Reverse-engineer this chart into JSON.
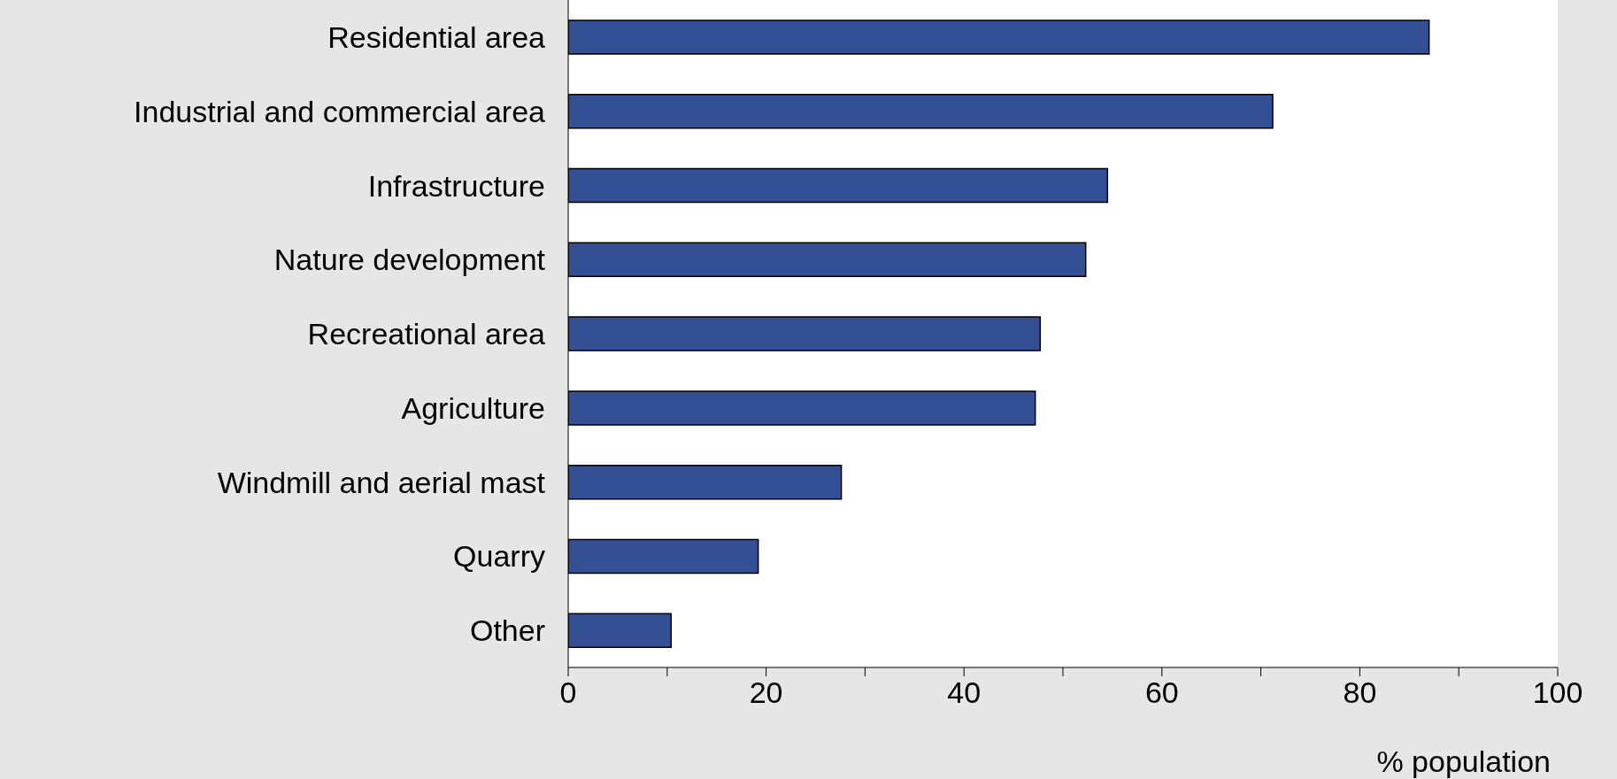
{
  "chart_data": {
    "type": "bar",
    "orientation": "horizontal",
    "xlabel": "% population",
    "categories": [
      "Residential area",
      "Industrial and commercial area",
      "Infrastructure",
      "Nature development",
      "Recreational area",
      "Agriculture",
      "Windmill and aerial mast",
      "Quarry",
      "Other"
    ],
    "values": [
      87,
      71.2,
      54.5,
      52.3,
      47.7,
      47.2,
      27.6,
      19.2,
      10.4
    ],
    "color": "#354f95",
    "xlim": [
      0,
      100
    ],
    "xticks": [
      0,
      {
        "value": 10,
        "label": null
      },
      20,
      {
        "value": 30,
        "label": null
      },
      40,
      {
        "value": 50,
        "label": null
      },
      60,
      {
        "value": 70,
        "label": null
      },
      80,
      {
        "value": 90,
        "label": null
      },
      100
    ],
    "grid": false,
    "legend": false
  }
}
